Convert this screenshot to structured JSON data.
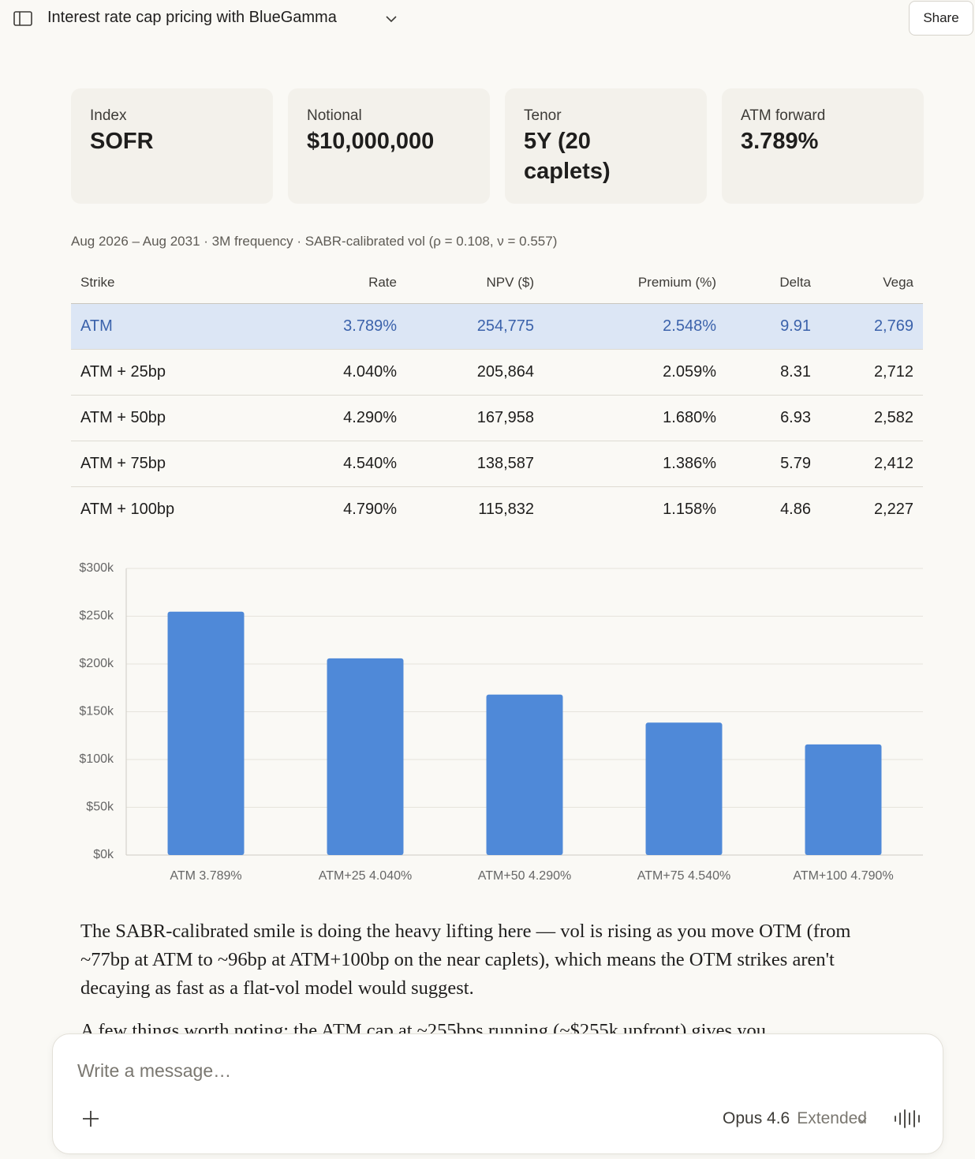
{
  "header": {
    "title": "Interest rate cap pricing with BlueGamma",
    "share": "Share"
  },
  "cards": [
    {
      "label": "Index",
      "value": "SOFR"
    },
    {
      "label": "Notional",
      "value": "$10,000,000"
    },
    {
      "label": "Tenor",
      "value": "5Y (20 caplets)"
    },
    {
      "label": "ATM forward",
      "value": "3.789%"
    }
  ],
  "table": {
    "caption": "Aug 2026 – Aug 2031 · 3M frequency · SABR-calibrated vol (ρ = 0.108, ν = 0.557)",
    "columns": [
      "Strike",
      "Rate",
      "NPV ($)",
      "Premium (%)",
      "Delta",
      "Vega"
    ],
    "rows": [
      [
        "ATM",
        "3.789%",
        "254,775",
        "2.548%",
        "9.91",
        "2,769"
      ],
      [
        "ATM + 25bp",
        "4.040%",
        "205,864",
        "2.059%",
        "8.31",
        "2,712"
      ],
      [
        "ATM + 50bp",
        "4.290%",
        "167,958",
        "1.680%",
        "6.93",
        "2,582"
      ],
      [
        "ATM + 75bp",
        "4.540%",
        "138,587",
        "1.386%",
        "5.79",
        "2,412"
      ],
      [
        "ATM + 100bp",
        "4.790%",
        "115,832",
        "1.158%",
        "4.86",
        "2,227"
      ]
    ]
  },
  "chart_data": {
    "type": "bar",
    "categories": [
      "ATM 3.789%",
      "ATM+25 4.040%",
      "ATM+50 4.290%",
      "ATM+75 4.540%",
      "ATM+100 4.790%"
    ],
    "values": [
      254775,
      205864,
      167958,
      138587,
      115832
    ],
    "color": "#4f89d8",
    "ylim": [
      0,
      300000
    ],
    "yticks": [
      {
        "value": 0,
        "label": "$0k"
      },
      {
        "value": 50000,
        "label": "$50k"
      },
      {
        "value": 100000,
        "label": "$100k"
      },
      {
        "value": 150000,
        "label": "$150k"
      },
      {
        "value": 200000,
        "label": "$200k"
      },
      {
        "value": 250000,
        "label": "$250k"
      },
      {
        "value": 300000,
        "label": "$300k"
      }
    ],
    "grid": true
  },
  "text": {
    "paragraphs": [
      "The SABR-calibrated smile is doing the heavy lifting here — vol is rising as you move OTM (from ~77bp at ATM to ~96bp at ATM+100bp on the near caplets), which means the OTM strikes aren't decaying as fast as a flat-vol model would suggest.",
      "A few things worth noting: the ATM cap at ~255bps running (~$255k upfront) gives you"
    ]
  },
  "composer": {
    "placeholder": "Write a message…",
    "model": "Opus 4.6",
    "mode": "Extended"
  }
}
